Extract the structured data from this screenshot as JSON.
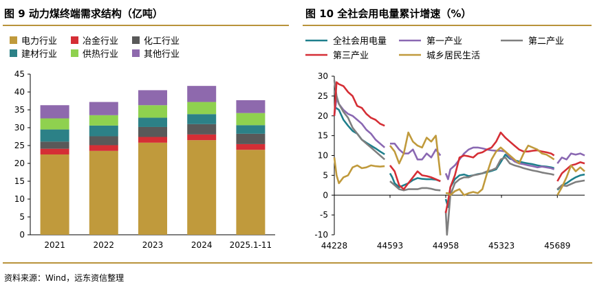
{
  "colors": {
    "rule": "#b8933a",
    "axis": "#000000"
  },
  "chart_data": [
    {
      "id": "fig9",
      "type": "bar",
      "stacked": true,
      "title": "图 9  动力煤终端需求结构（亿吨）",
      "categories": [
        "2021",
        "2022",
        "2023",
        "2024",
        "2025.1-11"
      ],
      "ylim": [
        0,
        45
      ],
      "yticks": [
        0,
        5,
        10,
        15,
        20,
        25,
        30,
        35,
        40,
        45
      ],
      "grid": false,
      "legend_position": "top-left",
      "series": [
        {
          "name": "电力行业",
          "color": "#c09a3c",
          "values": [
            22.5,
            23.5,
            25.8,
            26.5,
            23.8
          ]
        },
        {
          "name": "冶金行业",
          "color": "#d52e35",
          "values": [
            1.6,
            1.6,
            1.6,
            1.6,
            1.6
          ]
        },
        {
          "name": "化工行业",
          "color": "#595959",
          "values": [
            2.0,
            2.5,
            2.8,
            2.9,
            2.9
          ]
        },
        {
          "name": "建材行业",
          "color": "#2c8187",
          "values": [
            3.4,
            3.0,
            2.6,
            2.8,
            2.4
          ]
        },
        {
          "name": "供热行业",
          "color": "#8fd14f",
          "values": [
            3.1,
            2.9,
            3.5,
            3.4,
            3.4
          ]
        },
        {
          "name": "其他行业",
          "color": "#8e69ad",
          "values": [
            3.7,
            3.7,
            4.2,
            4.5,
            3.6
          ]
        }
      ]
    },
    {
      "id": "fig10",
      "type": "line",
      "title": "图 10  全社会用电量累计增速（%）",
      "xlim": [
        44228,
        45868
      ],
      "xticks": [
        44228,
        44593,
        44958,
        45323,
        45689
      ],
      "ylim": [
        -10,
        30
      ],
      "yticks": [
        -10,
        -5,
        0,
        5,
        10,
        15,
        20,
        25,
        30
      ],
      "grid": false,
      "legend_position": "top",
      "series": [
        {
          "name": "全社会用电量",
          "color": "#1e7f8c",
          "segments": [
            {
              "x": [
                44228,
                44258,
                44288,
                44318,
                44348,
                44378,
                44408,
                44438,
                44468,
                44498,
                44528,
                44558
              ],
              "y": [
                22.3,
                21.5,
                19.0,
                17.5,
                16.2,
                15.5,
                14.0,
                13.2,
                12.5,
                11.8,
                11.0,
                10.3
              ]
            },
            {
              "x": [
                44593,
                44608,
                44623,
                44653,
                44683,
                44713,
                44743,
                44773,
                44803,
                44833,
                44863,
                44893,
                44923
              ],
              "y": [
                5.5,
                4.5,
                3.0,
                2.0,
                2.5,
                3.0,
                3.8,
                4.3,
                4.1,
                4.0,
                4.0,
                3.9,
                3.5
              ]
            },
            {
              "x": [
                44958,
                44973,
                44988,
                45018,
                45048,
                45078,
                45108,
                45138,
                45168,
                45198,
                45228,
                45258,
                45288,
                45318,
                45348,
                45378,
                45408,
                45438,
                45468,
                45498,
                45528,
                45558,
                45588,
                45618,
                45648,
                45668
              ],
              "y": [
                -1.0,
                -3.0,
                2.0,
                4.0,
                5.0,
                5.2,
                4.8,
                5.0,
                5.3,
                5.5,
                5.8,
                6.1,
                6.5,
                8.3,
                10.2,
                9.2,
                8.8,
                8.5,
                8.2,
                8.0,
                7.8,
                7.5,
                7.3,
                7.2,
                7.0,
                6.8
              ]
            },
            {
              "x": [
                45689,
                45719,
                45749,
                45779,
                45809,
                45839,
                45868
              ],
              "y": [
                1.3,
                2.5,
                3.0,
                3.8,
                4.5,
                5.0,
                5.2
              ]
            }
          ]
        },
        {
          "name": "第一产业",
          "color": "#8a68b2",
          "segments": [
            {
              "x": [
                44228,
                44243,
                44258,
                44288,
                44318,
                44348,
                44378,
                44408,
                44438,
                44468,
                44498,
                44528,
                44558
              ],
              "y": [
                20.0,
                24.5,
                23.0,
                21.5,
                20.5,
                20.0,
                19.0,
                18.0,
                16.5,
                15.5,
                14.0,
                13.0,
                12.0
              ]
            },
            {
              "x": [
                44593,
                44623,
                44653,
                44683,
                44713,
                44743,
                44773,
                44803,
                44833,
                44863,
                44893,
                44923
              ],
              "y": [
                13.0,
                13.0,
                11.5,
                10.5,
                10.5,
                11.5,
                9.0,
                9.0,
                10.5,
                9.5,
                11.5,
                10.0
              ]
            },
            {
              "x": [
                44958,
                44973,
                44988,
                45018,
                45048,
                45078,
                45108,
                45138,
                45168,
                45198,
                45228,
                45258,
                45288,
                45318,
                45348,
                45378,
                45408,
                45438,
                45468,
                45498,
                45528,
                45558,
                45588,
                45618,
                45648,
                45668
              ],
              "y": [
                5.5,
                4.0,
                6.5,
                7.5,
                9.0,
                10.5,
                11.5,
                12.0,
                12.0,
                11.8,
                11.5,
                11.3,
                11.2,
                11.2,
                11.0,
                9.5,
                8.5,
                8.0,
                7.8,
                7.5,
                7.3,
                7.0,
                7.2,
                7.0,
                6.8,
                6.5
              ]
            },
            {
              "x": [
                45689,
                45719,
                45749,
                45779,
                45809,
                45839,
                45868
              ],
              "y": [
                8.0,
                9.5,
                9.0,
                10.5,
                10.2,
                10.5,
                10.0
              ]
            }
          ]
        },
        {
          "name": "第二产业",
          "color": "#7f7f7f",
          "segments": [
            {
              "x": [
                44228,
                44243,
                44258,
                44288,
                44318,
                44348,
                44378,
                44408,
                44438,
                44468,
                44498,
                44528,
                44558
              ],
              "y": [
                29.0,
                25.0,
                23.0,
                21.0,
                19.5,
                17.0,
                15.5,
                14.0,
                13.0,
                12.0,
                11.0,
                10.0,
                9.0
              ]
            },
            {
              "x": [
                44593,
                44623,
                44653,
                44683,
                44713,
                44743,
                44773,
                44803,
                44833,
                44863,
                44893,
                44923
              ],
              "y": [
                3.5,
                2.5,
                1.5,
                1.2,
                1.5,
                1.5,
                1.5,
                1.8,
                1.8,
                1.6,
                1.3,
                1.2
              ]
            },
            {
              "x": [
                44958,
                44966,
                44973,
                44988,
                45018,
                45048,
                45078,
                45108,
                45138,
                45168,
                45198,
                45228,
                45258,
                45288,
                45318,
                45348,
                45378,
                45408,
                45438,
                45468,
                45498,
                45528,
                45558,
                45588,
                45618,
                45648,
                45668
              ],
              "y": [
                -4.0,
                -10.0,
                -7.0,
                0.0,
                3.0,
                4.0,
                4.5,
                4.5,
                5.0,
                5.2,
                5.5,
                6.0,
                6.3,
                6.8,
                9.0,
                9.5,
                8.0,
                7.5,
                7.2,
                6.8,
                6.5,
                6.2,
                6.0,
                5.7,
                5.5,
                5.3,
                5.1
              ]
            },
            {
              "x": [
                45689,
                45719,
                45749,
                45779,
                45809,
                45839,
                45868
              ],
              "y": [
                1.5,
                2.5,
                2.3,
                2.8,
                3.3,
                3.5,
                3.7
              ]
            }
          ]
        },
        {
          "name": "第三产业",
          "color": "#d52e35",
          "segments": [
            {
              "x": [
                44228,
                44243,
                44258,
                44288,
                44318,
                44348,
                44378,
                44408,
                44438,
                44468,
                44498,
                44528,
                44558
              ],
              "y": [
                20.0,
                28.5,
                28.0,
                27.5,
                26.0,
                25.0,
                22.5,
                22.0,
                20.5,
                19.5,
                19.0,
                18.0,
                17.5
              ]
            },
            {
              "x": [
                44593,
                44623,
                44653,
                44683,
                44713,
                44743,
                44773,
                44803,
                44833,
                44863,
                44893,
                44923
              ],
              "y": [
                7.5,
                6.0,
                2.5,
                1.5,
                3.0,
                4.5,
                6.0,
                5.0,
                4.8,
                4.5,
                4.0,
                3.5
              ]
            },
            {
              "x": [
                44958,
                44973,
                44988,
                45018,
                45048,
                45078,
                45108,
                45138,
                45168,
                45198,
                45228,
                45258,
                45288,
                45318,
                45348,
                45378,
                45408,
                45438,
                45468,
                45498,
                45528,
                45558,
                45588,
                45618,
                45648,
                45668
              ],
              "y": [
                -4.5,
                -1.5,
                2.0,
                5.0,
                9.5,
                10.0,
                9.8,
                9.5,
                10.5,
                10.8,
                11.5,
                12.0,
                13.5,
                15.8,
                14.5,
                13.5,
                12.5,
                11.5,
                11.0,
                11.0,
                11.2,
                11.3,
                11.0,
                10.8,
                10.5,
                10.0
              ]
            },
            {
              "x": [
                45689,
                45719,
                45749,
                45779,
                45809,
                45839,
                45868
              ],
              "y": [
                3.5,
                5.5,
                6.5,
                7.5,
                7.8,
                8.3,
                8.0
              ]
            }
          ]
        },
        {
          "name": "城乡居民生活",
          "color": "#c09a3c",
          "segments": [
            {
              "x": [
                44228,
                44243,
                44258,
                44288,
                44318,
                44348,
                44378,
                44408,
                44438,
                44468,
                44498,
                44528,
                44558
              ],
              "y": [
                9.5,
                5.0,
                3.0,
                4.5,
                5.0,
                7.0,
                7.5,
                6.8,
                7.0,
                7.5,
                7.3,
                7.2,
                7.3
              ]
            },
            {
              "x": [
                44593,
                44623,
                44653,
                44683,
                44713,
                44743,
                44773,
                44803,
                44833,
                44863,
                44893,
                44923
              ],
              "y": [
                12.5,
                11.0,
                8.0,
                10.5,
                15.8,
                13.5,
                12.5,
                12.0,
                14.5,
                13.5,
                15.0,
                5.0
              ]
            },
            {
              "x": [
                44958,
                44973,
                44988,
                45018,
                45048,
                45078,
                45108,
                45138,
                45168,
                45198,
                45228,
                45258,
                45288,
                45318,
                45348,
                45378,
                45408,
                45438,
                45468,
                45498,
                45528,
                45558,
                45588,
                45618,
                45648,
                45668
              ],
              "y": [
                0.5,
                0.5,
                0.0,
                1.0,
                1.5,
                0.0,
                0.5,
                0.8,
                0.5,
                1.5,
                5.5,
                9.0,
                11.0,
                12.0,
                11.0,
                10.0,
                9.0,
                8.0,
                10.5,
                12.5,
                12.0,
                11.5,
                10.5,
                10.2,
                9.5,
                9.0
              ]
            },
            {
              "x": [
                45689,
                45719,
                45749,
                45779,
                45809,
                45839,
                45868
              ],
              "y": [
                0.0,
                2.0,
                4.5,
                7.5,
                6.0,
                7.0,
                6.0
              ]
            }
          ]
        }
      ]
    }
  ],
  "source": "资料来源：Wind，远东资信整理"
}
